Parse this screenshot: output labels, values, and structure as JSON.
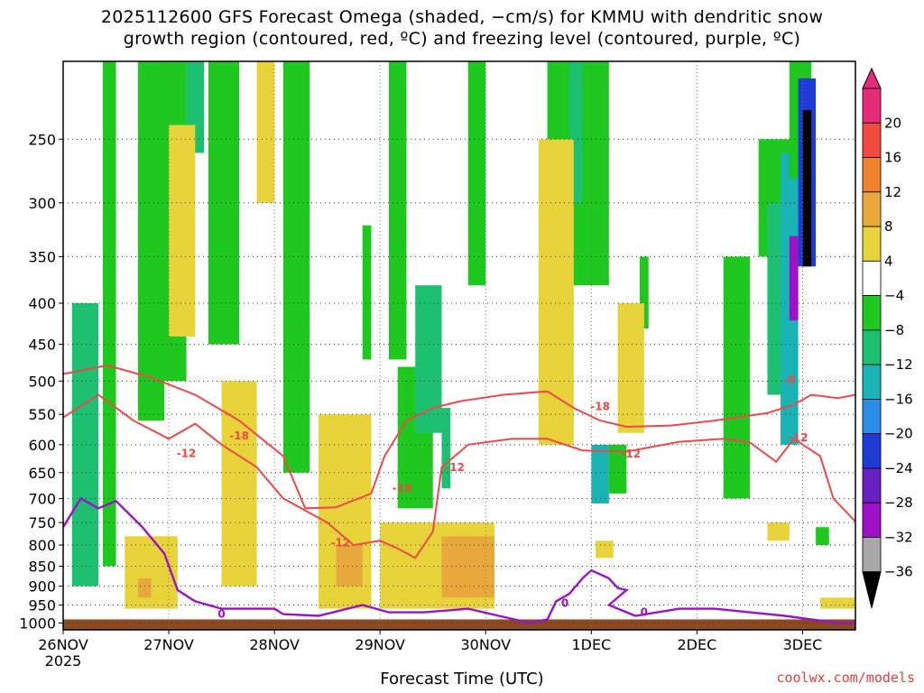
{
  "title_line1": "2025112600 GFS Forecast Omega (shaded, −cm/s) for KMMU with dendritic snow",
  "title_line2": "growth region (contoured, red, ºC) and freezing level (contoured, purple, ºC)",
  "credit": "coolwx.com/models",
  "chart_data": {
    "type": "heatmap",
    "title": "2025112600 GFS Forecast Omega (shaded, −cm/s) for KMMU with dendritic snow growth region (contoured, red, ºC) and freezing level (contoured, purple, ºC)",
    "xlabel": "Forecast Time (UTC)",
    "ylabel": "",
    "x_tick_labels": [
      "26NOV",
      "27NOV",
      "28NOV",
      "29NOV",
      "30NOV",
      "1DEC",
      "2DEC",
      "3DEC"
    ],
    "x_year_label": "2025",
    "x_range_hours": [
      0,
      180
    ],
    "y_tick_labels": [
      "250",
      "300",
      "350",
      "400",
      "450",
      "500",
      "550",
      "600",
      "650",
      "700",
      "750",
      "800",
      "850",
      "900",
      "950",
      "1000"
    ],
    "y_range_hPa": [
      200,
      1020
    ],
    "y_scale": "log",
    "grid": true,
    "colorbar": {
      "position": "right",
      "tick_labels": [
        "20",
        "16",
        "12",
        "8",
        "4",
        "−4",
        "−8",
        "−12",
        "−16",
        "−20",
        "−24",
        "−28",
        "−32",
        "−36"
      ],
      "bins": [
        {
          "range": [
            20,
            24
          ],
          "color": "#e62c78"
        },
        {
          "range": [
            16,
            20
          ],
          "color": "#f14a3e"
        },
        {
          "range": [
            12,
            16
          ],
          "color": "#f0812d"
        },
        {
          "range": [
            8,
            12
          ],
          "color": "#e9a83b"
        },
        {
          "range": [
            4,
            8
          ],
          "color": "#e8d43a"
        },
        {
          "range": [
            -4,
            4
          ],
          "color": "#ffffff"
        },
        {
          "range": [
            -8,
            -4
          ],
          "color": "#1ec81e"
        },
        {
          "range": [
            -12,
            -8
          ],
          "color": "#1dbf70"
        },
        {
          "range": [
            -16,
            -12
          ],
          "color": "#19b3b5"
        },
        {
          "range": [
            -20,
            -16
          ],
          "color": "#2a8de6"
        },
        {
          "range": [
            -24,
            -20
          ],
          "color": "#1f3bd6"
        },
        {
          "range": [
            -28,
            -24
          ],
          "color": "#6a1fc2"
        },
        {
          "range": [
            -32,
            -28
          ],
          "color": "#a010c8"
        },
        {
          "range": [
            -36,
            -32
          ],
          "color": "#a8a8a8"
        },
        {
          "range": [
            -40,
            -36
          ],
          "color": "#000000"
        }
      ]
    },
    "omega_features": [
      {
        "t": [
          2,
          8
        ],
        "p": [
          400,
          900
        ],
        "v": -12
      },
      {
        "t": [
          9,
          12
        ],
        "p": [
          200,
          850
        ],
        "v": -6
      },
      {
        "t": [
          17,
          23
        ],
        "p": [
          200,
          560
        ],
        "v": -6
      },
      {
        "t": [
          22,
          28
        ],
        "p": [
          200,
          500
        ],
        "v": -6
      },
      {
        "t": [
          28,
          32
        ],
        "p": [
          200,
          260
        ],
        "v": -12
      },
      {
        "t": [
          33,
          40
        ],
        "p": [
          200,
          450
        ],
        "v": -6
      },
      {
        "t": [
          50,
          56
        ],
        "p": [
          200,
          650
        ],
        "v": -6
      },
      {
        "t": [
          68,
          70
        ],
        "p": [
          320,
          470
        ],
        "v": -6
      },
      {
        "t": [
          74,
          78
        ],
        "p": [
          200,
          470
        ],
        "v": -6
      },
      {
        "t": [
          76,
          84
        ],
        "p": [
          480,
          720
        ],
        "v": -6
      },
      {
        "t": [
          80,
          86
        ],
        "p": [
          380,
          580
        ],
        "v": -12
      },
      {
        "t": [
          86,
          88
        ],
        "p": [
          540,
          680
        ],
        "v": -12
      },
      {
        "t": [
          92,
          96
        ],
        "p": [
          200,
          380
        ],
        "v": -6
      },
      {
        "t": [
          110,
          124
        ],
        "p": [
          200,
          380
        ],
        "v": -6
      },
      {
        "t": [
          115,
          118
        ],
        "p": [
          200,
          300
        ],
        "v": -12
      },
      {
        "t": [
          120,
          124
        ],
        "p": [
          600,
          710
        ],
        "v": -14
      },
      {
        "t": [
          124,
          128
        ],
        "p": [
          600,
          690
        ],
        "v": -6
      },
      {
        "t": [
          131,
          133
        ],
        "p": [
          350,
          430
        ],
        "v": -6
      },
      {
        "t": [
          150,
          156
        ],
        "p": [
          350,
          700
        ],
        "v": -6
      },
      {
        "t": [
          158,
          170
        ],
        "p": [
          250,
          350
        ],
        "v": -6
      },
      {
        "t": [
          160,
          164
        ],
        "p": [
          300,
          520
        ],
        "v": -12
      },
      {
        "t": [
          163,
          167
        ],
        "p": [
          260,
          600
        ],
        "v": -16
      },
      {
        "t": [
          165,
          167
        ],
        "p": [
          330,
          420
        ],
        "v": -30
      },
      {
        "t": [
          165,
          170
        ],
        "p": [
          200,
          280
        ],
        "v": -6
      },
      {
        "t": [
          167,
          171
        ],
        "p": [
          210,
          360
        ],
        "v": -24
      },
      {
        "t": [
          168,
          170
        ],
        "p": [
          230,
          360
        ],
        "v": -38
      },
      {
        "t": [
          171,
          174
        ],
        "p": [
          760,
          800
        ],
        "v": -6
      },
      {
        "t": [
          24,
          30
        ],
        "p": [
          240,
          440
        ],
        "v": 6
      },
      {
        "t": [
          44,
          48
        ],
        "p": [
          200,
          300
        ],
        "v": 6
      },
      {
        "t": [
          58,
          70
        ],
        "p": [
          550,
          960
        ],
        "v": 6
      },
      {
        "t": [
          62,
          68
        ],
        "p": [
          800,
          900
        ],
        "v": 10
      },
      {
        "t": [
          72,
          98
        ],
        "p": [
          750,
          960
        ],
        "v": 6
      },
      {
        "t": [
          86,
          98
        ],
        "p": [
          780,
          930
        ],
        "v": 10
      },
      {
        "t": [
          108,
          116
        ],
        "p": [
          250,
          600
        ],
        "v": 6
      },
      {
        "t": [
          14,
          26
        ],
        "p": [
          780,
          960
        ],
        "v": 6
      },
      {
        "t": [
          17,
          20
        ],
        "p": [
          880,
          930
        ],
        "v": 10
      },
      {
        "t": [
          36,
          44
        ],
        "p": [
          500,
          900
        ],
        "v": 6
      },
      {
        "t": [
          126,
          132
        ],
        "p": [
          400,
          580
        ],
        "v": 6
      },
      {
        "t": [
          121,
          125
        ],
        "p": [
          790,
          830
        ],
        "v": 6
      },
      {
        "t": [
          160,
          165
        ],
        "p": [
          750,
          790
        ],
        "v": 6
      },
      {
        "t": [
          172,
          180
        ],
        "p": [
          930,
          960
        ],
        "v": 6
      }
    ],
    "dgz_contours": [
      {
        "label": "-12",
        "points": [
          [
            0,
            490
          ],
          [
            10,
            478
          ],
          [
            20,
            495
          ],
          [
            30,
            520
          ],
          [
            40,
            560
          ],
          [
            50,
            620
          ],
          [
            55,
            720
          ],
          [
            62,
            718
          ],
          [
            70,
            690
          ],
          [
            73,
            620
          ],
          [
            78,
            560
          ],
          [
            84,
            540
          ],
          [
            90,
            530
          ],
          [
            100,
            520
          ],
          [
            110,
            515
          ],
          [
            116,
            540
          ],
          [
            122,
            560
          ],
          [
            128,
            570
          ],
          [
            138,
            568
          ],
          [
            148,
            560
          ],
          [
            160,
            548
          ],
          [
            166,
            535
          ],
          [
            170,
            520
          ],
          [
            176,
            525
          ],
          [
            180,
            520
          ]
        ]
      },
      {
        "label": "-18",
        "points": [
          [
            0,
            555
          ],
          [
            8,
            520
          ],
          [
            16,
            560
          ],
          [
            24,
            590
          ],
          [
            30,
            565
          ],
          [
            36,
            600
          ],
          [
            44,
            640
          ],
          [
            50,
            700
          ],
          [
            60,
            750
          ],
          [
            66,
            800
          ],
          [
            72,
            790
          ],
          [
            76,
            808
          ],
          [
            80,
            830
          ],
          [
            84,
            770
          ],
          [
            86,
            640
          ],
          [
            92,
            600
          ],
          [
            102,
            590
          ],
          [
            110,
            590
          ],
          [
            118,
            610
          ],
          [
            128,
            612
          ],
          [
            140,
            595
          ],
          [
            150,
            590
          ],
          [
            156,
            596
          ],
          [
            162,
            630
          ],
          [
            166,
            590
          ],
          [
            172,
            620
          ],
          [
            175,
            700
          ],
          [
            180,
            748
          ]
        ]
      }
    ],
    "dgz_contour_labels": [
      {
        "text": "-18",
        "t": 40,
        "p": 585
      },
      {
        "text": "-12",
        "t": 28,
        "p": 615
      },
      {
        "text": "-18",
        "t": 77,
        "p": 680
      },
      {
        "text": "-12",
        "t": 89,
        "p": 640
      },
      {
        "text": "-12",
        "t": 63,
        "p": 795
      },
      {
        "text": "-18",
        "t": 122,
        "p": 538
      },
      {
        "text": "-12",
        "t": 129,
        "p": 616
      },
      {
        "text": "-8",
        "t": 165,
        "p": 498
      },
      {
        "text": "-12",
        "t": 167,
        "p": 588
      }
    ],
    "freezing_contour": {
      "label": "0",
      "points": [
        [
          0,
          760
        ],
        [
          4,
          700
        ],
        [
          8,
          720
        ],
        [
          12,
          705
        ],
        [
          18,
          760
        ],
        [
          23,
          820
        ],
        [
          26,
          910
        ],
        [
          30,
          940
        ],
        [
          36,
          960
        ],
        [
          40,
          960
        ],
        [
          48,
          960
        ],
        [
          50,
          975
        ],
        [
          58,
          980
        ],
        [
          68,
          950
        ],
        [
          74,
          970
        ],
        [
          82,
          970
        ],
        [
          92,
          960
        ],
        [
          99,
          980
        ],
        [
          106,
          1000
        ],
        [
          110,
          990
        ],
        [
          112,
          940
        ],
        [
          115,
          920
        ],
        [
          118,
          880
        ],
        [
          120,
          860
        ],
        [
          124,
          880
        ],
        [
          126,
          905
        ],
        [
          128,
          910
        ],
        [
          124,
          950
        ],
        [
          130,
          980
        ],
        [
          140,
          960
        ],
        [
          148,
          960
        ],
        [
          156,
          970
        ],
        [
          164,
          980
        ],
        [
          170,
          990
        ],
        [
          176,
          1000
        ],
        [
          180,
          1000
        ]
      ]
    },
    "freezing_labels": [
      {
        "text": "0",
        "t": 36,
        "p": 975
      },
      {
        "text": "0",
        "t": 114,
        "p": 945
      },
      {
        "text": "0",
        "t": 132,
        "p": 970
      }
    ],
    "ground": {
      "color": "#8b4a22"
    }
  }
}
